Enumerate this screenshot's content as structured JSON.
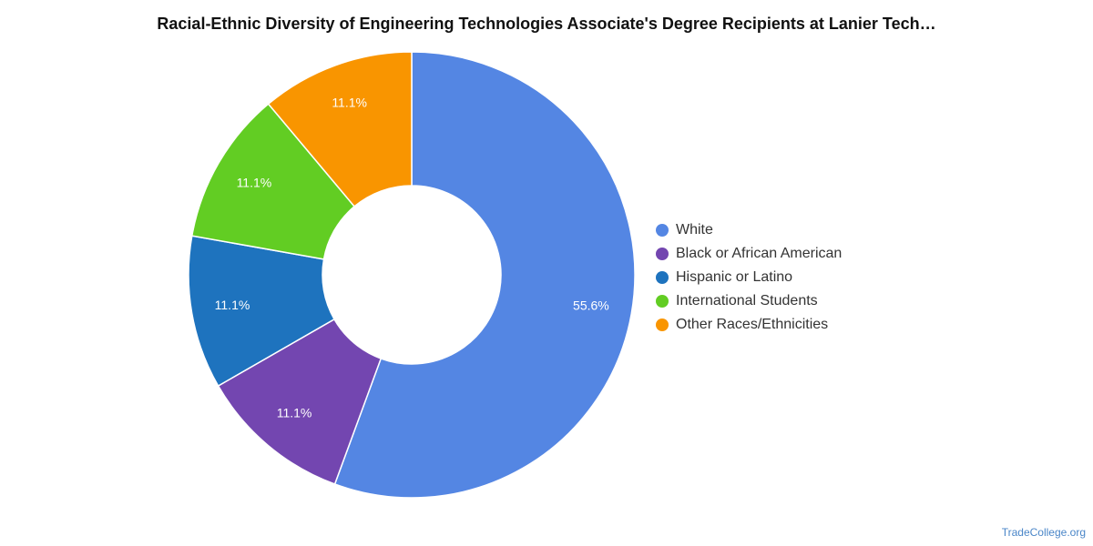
{
  "chart_data": {
    "type": "pie",
    "title": "Racial-Ethnic Diversity of Engineering Technologies Associate's Degree Recipients at Lanier Tech…",
    "categories": [
      "White",
      "Black or African American",
      "Hispanic or Latino",
      "International Students",
      "Other Races/Ethnicities"
    ],
    "values": [
      55.6,
      11.1,
      11.1,
      11.1,
      11.1
    ],
    "labels": [
      "55.6%",
      "11.1%",
      "11.1%",
      "11.1%",
      "11.1%"
    ],
    "colors": [
      "#5486e3",
      "#7346b0",
      "#1e73be",
      "#62cd23",
      "#f99500"
    ],
    "donut": true,
    "legend_position": "right"
  },
  "source": "TradeCollege.org"
}
